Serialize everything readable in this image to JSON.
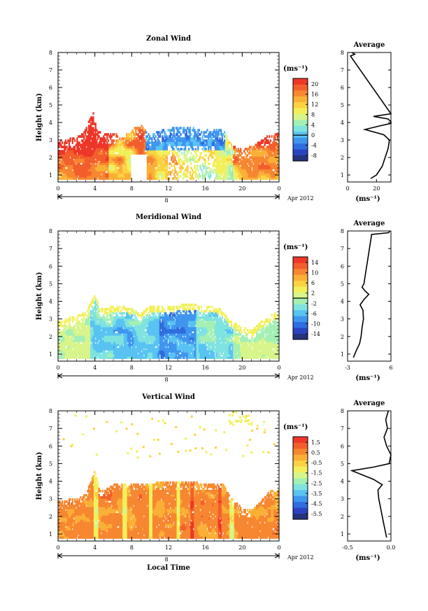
{
  "figure": {
    "xlabel": "Local Time",
    "date_label": "Apr 2012",
    "day_marker": "8",
    "avg_title": "Average",
    "avg_xlabel": "(ms⁻¹)",
    "colorbar_unit": "(ms⁻¹)"
  },
  "chart_data": [
    {
      "type": "heatmap",
      "title": "Zonal Wind",
      "xlabel": "",
      "ylabel": "Height (km)",
      "x_ticks": [
        "0",
        "4",
        "8",
        "12",
        "16",
        "20",
        "0"
      ],
      "xlim": [
        0,
        24
      ],
      "y_ticks": [
        "1",
        "2",
        "3",
        "4",
        "5",
        "6",
        "7",
        "8"
      ],
      "ylim": [
        0.6,
        8.0
      ],
      "colorbar": {
        "ticks": [
          "20",
          "16",
          "12",
          "8",
          "4",
          "0",
          "-4",
          "-8"
        ],
        "range": [
          -10,
          22
        ],
        "contour_at": 0
      },
      "colors": [
        "#26327a",
        "#2a44c0",
        "#2f6de0",
        "#3f96ef",
        "#59c3f2",
        "#7fe3e0",
        "#a4f0b4",
        "#d7f58a",
        "#f2f05a",
        "#fbd242",
        "#fab036",
        "#f78730",
        "#f35f2c",
        "#ee3728"
      ],
      "profile": {
        "xlim": [
          0,
          30
        ],
        "x_ticks": [
          "0",
          "20"
        ],
        "h": [
          0.8,
          1.0,
          1.5,
          2.0,
          2.5,
          3.0,
          3.3,
          3.6,
          3.8,
          3.95,
          4.05,
          4.2,
          4.35,
          4.5,
          7.8,
          7.9,
          8.0
        ],
        "v": [
          16,
          20,
          24,
          26,
          28,
          29,
          25,
          12,
          22,
          32,
          30,
          28,
          18,
          31,
          2,
          5,
          3
        ]
      },
      "field": [
        {
          "h": [
            1.0,
            1.5,
            2.0,
            2.5,
            3.0,
            3.5,
            4.0
          ],
          "v": [
            8,
            10,
            13,
            16,
            19,
            20,
            20
          ]
        },
        {
          "h": [
            1.0,
            1.5,
            2.0,
            2.5,
            3.0,
            3.5
          ],
          "v": [
            6,
            8,
            10,
            12,
            14,
            13
          ]
        },
        {
          "h": [
            1.0,
            1.5,
            2.0,
            2.5,
            3.0,
            3.4
          ],
          "v": [
            -2,
            -4,
            -6,
            -8,
            -8,
            -6
          ]
        }
      ]
    },
    {
      "type": "heatmap",
      "title": "Meridional Wind",
      "xlabel": "",
      "ylabel": "Height (km)",
      "x_ticks": [
        "0",
        "4",
        "8",
        "12",
        "16",
        "20",
        "0"
      ],
      "xlim": [
        0,
        24
      ],
      "y_ticks": [
        "1",
        "2",
        "3",
        "4",
        "5",
        "6",
        "7",
        "8"
      ],
      "ylim": [
        0.6,
        8.0
      ],
      "colorbar": {
        "ticks": [
          "14",
          "10",
          "6",
          "2",
          "-2",
          "-6",
          "-10",
          "-14"
        ],
        "range": [
          -16,
          16
        ],
        "contour_at": 0
      },
      "colors": [
        "#26327a",
        "#2a44c0",
        "#2f6de0",
        "#3f96ef",
        "#59c3f2",
        "#7fe3e0",
        "#a4f0b4",
        "#d7f58a",
        "#f2f05a",
        "#fbd242",
        "#fab036",
        "#f78730",
        "#f35f2c",
        "#ee3728"
      ],
      "profile": {
        "xlim": [
          -3,
          6
        ],
        "x_ticks": [
          "-3",
          "6"
        ],
        "h": [
          0.8,
          1.2,
          1.6,
          2.0,
          2.5,
          3.0,
          3.5,
          3.8,
          4.1,
          4.4,
          4.6,
          4.8,
          5.0,
          7.8,
          7.9,
          8.0
        ],
        "v": [
          -1.8,
          -1.2,
          -0.5,
          -0.2,
          0.0,
          0.3,
          0.2,
          -0.4,
          0.4,
          1.4,
          0.6,
          0.0,
          0.4,
          2.0,
          5.5,
          5.8
        ]
      },
      "field": [
        {
          "h": [
            1.0,
            1.5,
            2.0,
            2.5,
            3.0,
            3.5
          ],
          "v": [
            -4,
            -6,
            -8,
            -8,
            -6,
            -4
          ]
        },
        {
          "h": [
            1.0,
            1.5,
            2.0,
            2.5,
            3.0,
            3.5
          ],
          "v": [
            -10,
            -10,
            -8,
            -6,
            -4,
            -2
          ]
        },
        {
          "h": [
            1.0,
            1.5,
            2.0,
            2.5,
            3.0,
            3.5
          ],
          "v": [
            -4,
            -4,
            -2,
            0,
            2,
            4
          ]
        }
      ]
    },
    {
      "type": "heatmap",
      "title": "Vertical Wind",
      "xlabel": "Local Time",
      "ylabel": "Height (km)",
      "x_ticks": [
        "0",
        "4",
        "8",
        "12",
        "16",
        "20",
        "0"
      ],
      "xlim": [
        0,
        24
      ],
      "y_ticks": [
        "1",
        "2",
        "3",
        "4",
        "5",
        "6",
        "7",
        "8"
      ],
      "ylim": [
        0.6,
        8.0
      ],
      "colorbar": {
        "ticks": [
          "1.5",
          "0.5",
          "-0.5",
          "-1.5",
          "-2.5",
          "-3.5",
          "-4.5",
          "-5.5"
        ],
        "range": [
          -6,
          2
        ],
        "contour_at": null
      },
      "colors": [
        "#26327a",
        "#2a44c0",
        "#2f6de0",
        "#3f96ef",
        "#59c3f2",
        "#7fe3e0",
        "#a4f0b4",
        "#d7f58a",
        "#f2f05a",
        "#fbd242",
        "#fab036",
        "#f78730",
        "#f35f2c",
        "#ee3728"
      ],
      "profile": {
        "xlim": [
          -0.5,
          0.0
        ],
        "x_ticks": [
          "-0.5",
          "0.0"
        ],
        "h": [
          0.8,
          1.5,
          2.0,
          2.5,
          3.0,
          3.5,
          3.8,
          4.1,
          4.4,
          4.6,
          4.8,
          5.0,
          5.5,
          6.0,
          6.5,
          7.0,
          7.5,
          8.0
        ],
        "v": [
          -0.05,
          -0.08,
          -0.1,
          -0.12,
          -0.14,
          -0.15,
          -0.1,
          -0.2,
          -0.35,
          -0.45,
          -0.2,
          -0.02,
          0.0,
          -0.05,
          -0.08,
          -0.04,
          -0.06,
          -0.03
        ]
      },
      "field": [
        {
          "h": [
            1.0,
            1.5,
            2.0,
            2.5,
            3.0,
            3.5
          ],
          "v": [
            0.3,
            0.5,
            0.4,
            0.2,
            0.0,
            -0.2
          ]
        },
        {
          "h": [
            1.0,
            1.5,
            2.0,
            2.5,
            3.0,
            3.5
          ],
          "v": [
            -0.3,
            -0.5,
            -0.3,
            0.0,
            0.1,
            0.2
          ]
        },
        {
          "h": [
            1.0,
            1.5,
            2.0,
            2.5,
            3.0,
            3.5
          ],
          "v": [
            0.5,
            0.6,
            0.3,
            0.0,
            -0.1,
            0.0
          ]
        }
      ]
    }
  ]
}
